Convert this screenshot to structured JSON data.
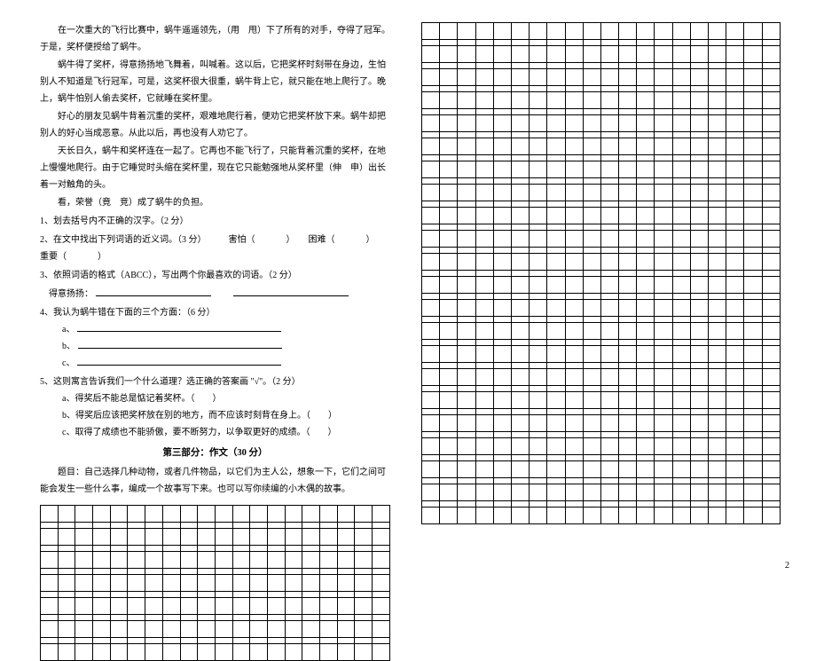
{
  "passage": {
    "p1": "在一次重大的飞行比赛中，蜗牛遥遥领先，（用　甩）下了所有的对手，夺得了冠军。于是，奖杯便授给了蜗牛。",
    "p2": "蜗牛得了奖杯，得意扬扬地飞舞着，叫喊着。这以后，它把奖杯时刻带在身边，生怕别人不知道是飞行冠军，可是，这奖杯很大很重，蜗牛背上它，就只能在地上爬行了。晚上，蜗牛怕别人偷去奖杯，它就睡在奖杯里。",
    "p3": "好心的朋友见蜗牛背着沉重的奖杯，艰难地爬行着，便劝它把奖杯放下来。蜗牛却把别人的好心当成恶意。从此以后，再也没有人劝它了。",
    "p4": "天长日久，蜗牛和奖杯连在一起了。它再也不能飞行了，只能背着沉重的奖杯，在地上慢慢地爬行。由于它睡觉时头缩在奖杯里，现在它只能勉强地从奖杯里（伸　申）出长着一对触角的头。",
    "p5": "看，荣誉（竟　竞）成了蜗牛的负担。"
  },
  "questions": {
    "q1": "1、划去括号内不正确的汉字。（2 分）",
    "q2_prefix": "2、在文中找出下列词语的近义词。（3 分）",
    "q2_w1": "害怕（",
    "q2_w2": "）　　困难（",
    "q2_w3": "）　　重要（",
    "q2_end": "）",
    "q3": "3、依照词语的格式（ABCC），写出两个你最喜欢的词语。（2 分）",
    "q3_label": "得意扬扬：",
    "q4": "4、我认为蜗牛错在下面的三个方面：（6 分）",
    "q4a": "a、",
    "q4b": "b、",
    "q4c": "c、",
    "q5": "5、这则寓言告诉我们一个什么道理？选正确的答案画 \"√\"。（2 分）",
    "q5a": "a、得奖后不能总是惦记着奖杯。（　　）",
    "q5b": "b、得奖后应该把奖杯放在别的地方，而不应该时刻背在身上。（　　）",
    "q5c": "c、取得了成绩也不能骄傲，要不断努力，以争取更好的成绩。（　　）"
  },
  "section3_title": "第三部分：作文（30 分）",
  "prompt": {
    "p1": "题目：自己选择几种动物，或者几件物品，以它们为主人公，想象一下，它们之间可能会发生一些什么事，编成一个故事写下来。也可以写你续编的小木偶的故事。"
  },
  "grid": {
    "cols": 20,
    "left_rows": 7,
    "right_rows": 22
  },
  "page_number": "2",
  "colors": {
    "text": "#000000",
    "bg": "#ffffff",
    "border": "#000000"
  }
}
